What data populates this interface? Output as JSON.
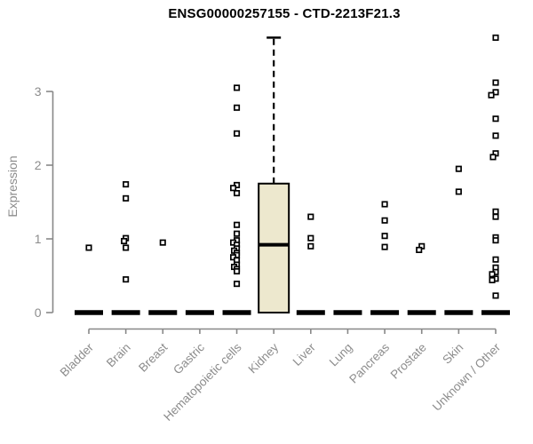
{
  "chart_data": {
    "type": "boxplot",
    "title": "ENSG00000257155 - CTD-2213F21.3",
    "ylabel": "Expression",
    "xlabel": "",
    "yticks": [
      0,
      1,
      2,
      3
    ],
    "ylim": [
      0,
      3.8
    ],
    "grid": false,
    "legend": "none",
    "categories": [
      "Bladder",
      "Brain",
      "Breast",
      "Gastric",
      "Hematopoietic cells",
      "Kidney",
      "Liver",
      "Lung",
      "Pancreas",
      "Prostate",
      "Skin",
      "Unknown / Other"
    ],
    "colors": {
      "box_fill": "#EDE8CE",
      "box_stroke": "#000000",
      "median": "#000000",
      "point_stroke": "#000000",
      "point_fill": "#FFFFFF",
      "axis": "#888888",
      "tick_text": "#8C8C8C",
      "title_text": "#000000",
      "background": "#FFFFFF"
    },
    "boxes": [
      {
        "category": "Bladder",
        "whisker_low": 0,
        "q1": 0,
        "median": 0,
        "q3": 0,
        "whisker_high": 0,
        "outliers": [
          [
            0.88,
            0
          ]
        ]
      },
      {
        "category": "Brain",
        "whisker_low": 0,
        "q1": 0,
        "median": 0,
        "q3": 0,
        "whisker_high": 0,
        "outliers": [
          [
            1.74,
            0
          ],
          [
            1.55,
            0
          ],
          [
            1.01,
            0
          ],
          [
            0.97,
            -2
          ],
          [
            0.88,
            0
          ],
          [
            0.45,
            0
          ]
        ]
      },
      {
        "category": "Breast",
        "whisker_low": 0,
        "q1": 0,
        "median": 0,
        "q3": 0,
        "whisker_high": 0,
        "outliers": [
          [
            0.95,
            0
          ]
        ]
      },
      {
        "category": "Gastric",
        "whisker_low": 0,
        "q1": 0,
        "median": 0,
        "q3": 0,
        "whisker_high": 0,
        "outliers": []
      },
      {
        "category": "Hematopoietic cells",
        "whisker_low": 0,
        "q1": 0,
        "median": 0,
        "q3": 0,
        "whisker_high": 0,
        "outliers": [
          [
            3.05,
            0
          ],
          [
            2.78,
            0
          ],
          [
            2.43,
            0
          ],
          [
            1.73,
            0
          ],
          [
            1.69,
            -4
          ],
          [
            1.62,
            0
          ],
          [
            1.19,
            0
          ],
          [
            1.07,
            0
          ],
          [
            0.98,
            0
          ],
          [
            0.95,
            -4
          ],
          [
            0.92,
            0
          ],
          [
            0.87,
            0
          ],
          [
            0.84,
            -3
          ],
          [
            0.81,
            0
          ],
          [
            0.78,
            0
          ],
          [
            0.75,
            -4
          ],
          [
            0.71,
            0
          ],
          [
            0.65,
            0
          ],
          [
            0.62,
            -3
          ],
          [
            0.59,
            0
          ],
          [
            0.56,
            0
          ],
          [
            0.39,
            0
          ]
        ]
      },
      {
        "category": "Kidney",
        "whisker_low": 0,
        "q1": 0,
        "median": 0.92,
        "q3": 1.75,
        "whisker_high": 3.73,
        "outliers": []
      },
      {
        "category": "Liver",
        "whisker_low": 0,
        "q1": 0,
        "median": 0,
        "q3": 0,
        "whisker_high": 0,
        "outliers": [
          [
            1.3,
            0
          ],
          [
            1.01,
            0
          ],
          [
            0.9,
            0
          ]
        ]
      },
      {
        "category": "Lung",
        "whisker_low": 0,
        "q1": 0,
        "median": 0,
        "q3": 0,
        "whisker_high": 0,
        "outliers": []
      },
      {
        "category": "Pancreas",
        "whisker_low": 0,
        "q1": 0,
        "median": 0,
        "q3": 0,
        "whisker_high": 0,
        "outliers": [
          [
            1.47,
            0
          ],
          [
            1.25,
            0
          ],
          [
            1.04,
            0
          ],
          [
            0.89,
            0
          ]
        ]
      },
      {
        "category": "Prostate",
        "whisker_low": 0,
        "q1": 0,
        "median": 0,
        "q3": 0,
        "whisker_high": 0,
        "outliers": [
          [
            0.9,
            0
          ],
          [
            0.85,
            -3
          ]
        ]
      },
      {
        "category": "Skin",
        "whisker_low": 0,
        "q1": 0,
        "median": 0,
        "q3": 0,
        "whisker_high": 0,
        "outliers": [
          [
            1.95,
            0
          ],
          [
            1.64,
            0
          ]
        ]
      },
      {
        "category": "Unknown / Other",
        "whisker_low": 0,
        "q1": 0,
        "median": 0,
        "q3": 0,
        "whisker_high": 0,
        "outliers": [
          [
            3.73,
            0
          ],
          [
            3.12,
            0
          ],
          [
            2.99,
            0
          ],
          [
            2.95,
            -5
          ],
          [
            2.63,
            0
          ],
          [
            2.4,
            0
          ],
          [
            2.16,
            0
          ],
          [
            2.11,
            -3
          ],
          [
            1.37,
            0
          ],
          [
            1.3,
            0
          ],
          [
            1.02,
            0
          ],
          [
            0.98,
            0
          ],
          [
            0.72,
            0
          ],
          [
            0.61,
            0
          ],
          [
            0.55,
            0
          ],
          [
            0.52,
            -4
          ],
          [
            0.46,
            0
          ],
          [
            0.44,
            -4
          ],
          [
            0.23,
            0
          ]
        ]
      }
    ]
  }
}
